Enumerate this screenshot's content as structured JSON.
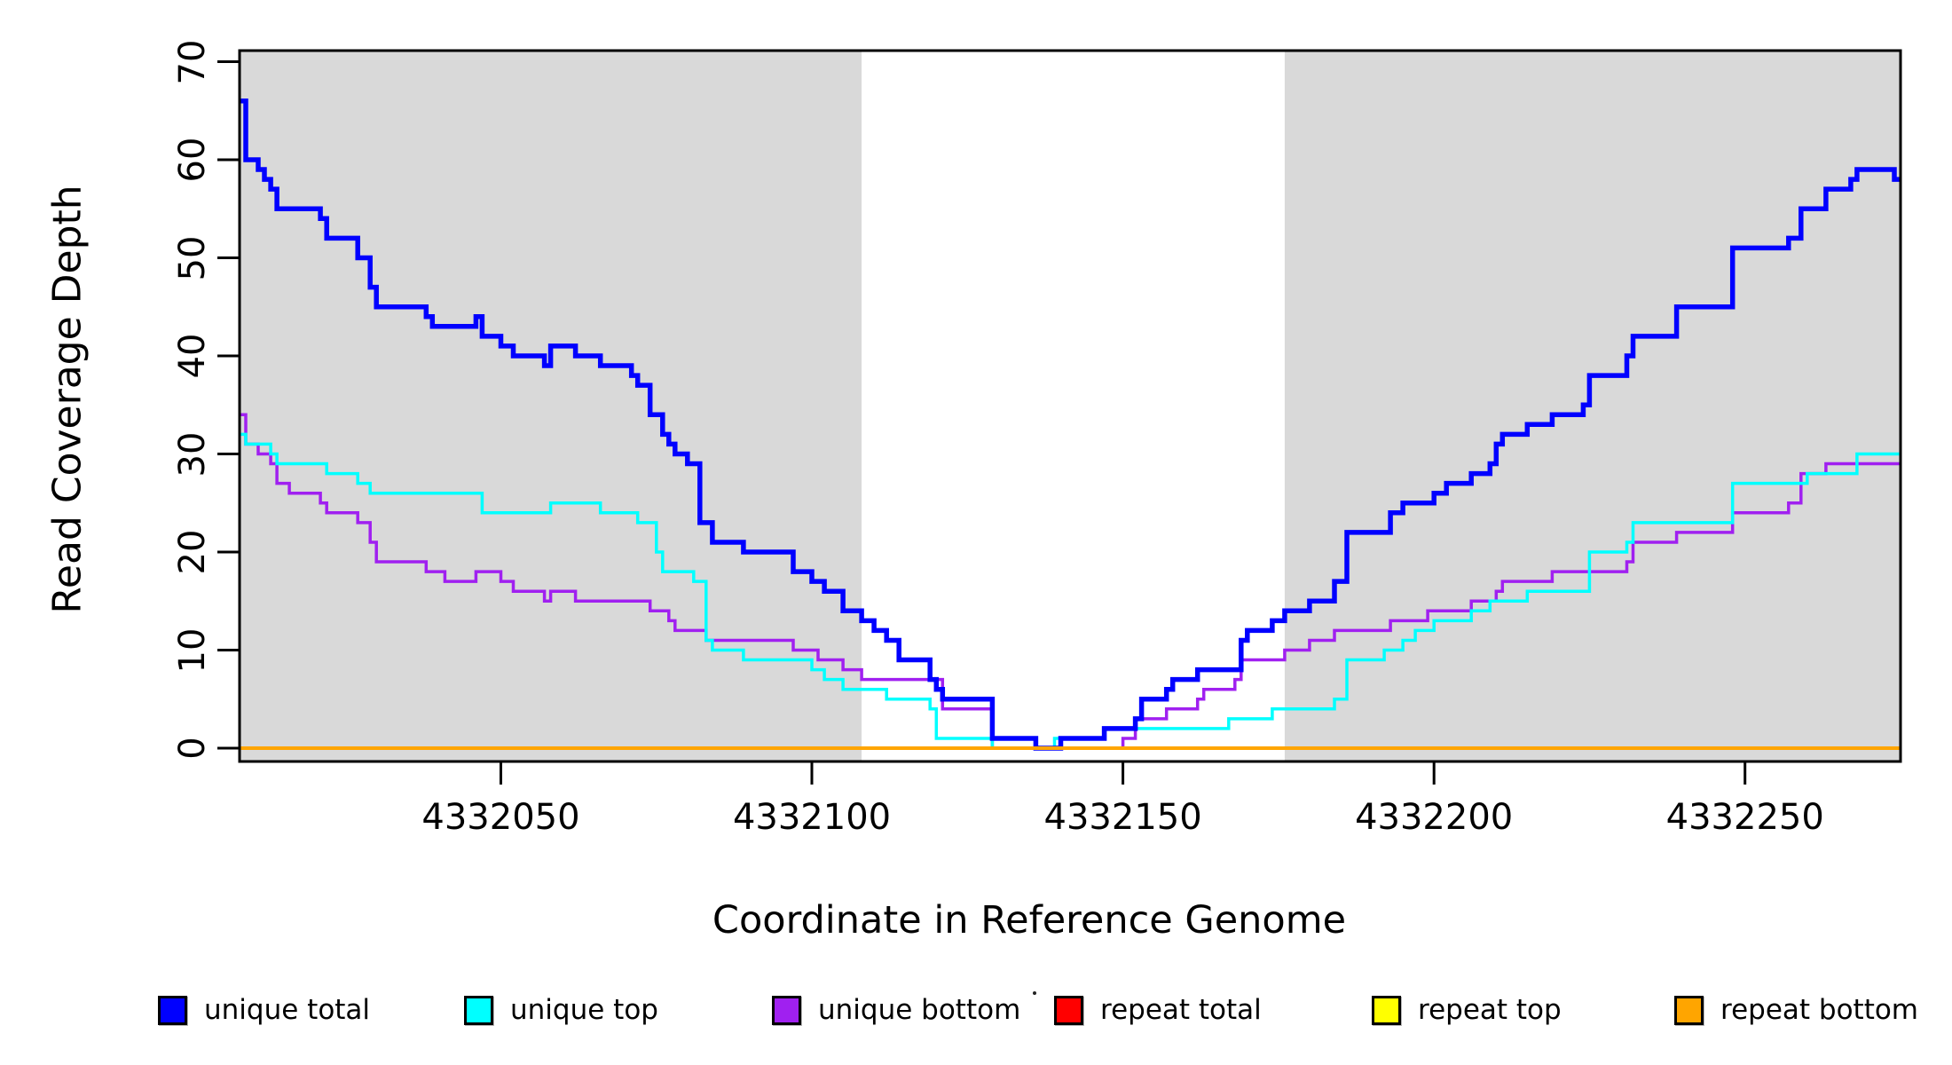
{
  "figure": {
    "y_axis_title": "Read Coverage Depth",
    "x_axis_title": "Coordinate in Reference Genome",
    "y_tick_labels": [
      "0",
      "10",
      "20",
      "30",
      "40",
      "50",
      "60",
      "70"
    ],
    "x_tick_labels": [
      "4332050",
      "4332100",
      "4332150",
      "4332200",
      "4332250"
    ]
  },
  "legend": {
    "position": "bottom",
    "items": [
      {
        "label": "unique total",
        "color": "#0000FF"
      },
      {
        "label": "unique top",
        "color": "#00FFFF"
      },
      {
        "label": "unique bottom",
        "color": "#A020F0"
      },
      {
        "label": "repeat total",
        "color": "#FF0000"
      },
      {
        "label": "repeat top",
        "color": "#FFFF00"
      },
      {
        "label": "repeat bottom",
        "color": "#FFA500"
      }
    ]
  },
  "chart_data": {
    "type": "line",
    "subtype": "step",
    "title": "",
    "xlabel": "Coordinate in Reference Genome",
    "ylabel": "Read Coverage Depth",
    "xlim": [
      4332008,
      4332275
    ],
    "ylim": [
      0,
      70
    ],
    "x_tick_values": [
      4332050,
      4332100,
      4332150,
      4332200,
      4332250
    ],
    "y_tick_values": [
      0,
      10,
      20,
      30,
      40,
      50,
      60,
      70
    ],
    "grid": false,
    "legend_position": "bottom",
    "background_color": "#FFFFFF",
    "shaded_band_color": "#D9D9D9",
    "shaded_regions": [
      {
        "x0": 4332008,
        "x1": 4332108
      },
      {
        "x0": 4332176,
        "x1": 4332275
      }
    ],
    "series": [
      {
        "name": "unique total",
        "color": "#0000FF",
        "width": 5.5,
        "points": [
          [
            4332008,
            66
          ],
          [
            4332009,
            60
          ],
          [
            4332011,
            59
          ],
          [
            4332012,
            58
          ],
          [
            4332013,
            57
          ],
          [
            4332014,
            55
          ],
          [
            4332021,
            54
          ],
          [
            4332022,
            52
          ],
          [
            4332027,
            50
          ],
          [
            4332029,
            47
          ],
          [
            4332030,
            45
          ],
          [
            4332038,
            44
          ],
          [
            4332039,
            43
          ],
          [
            4332046,
            44
          ],
          [
            4332047,
            42
          ],
          [
            4332050,
            41
          ],
          [
            4332052,
            40
          ],
          [
            4332057,
            39
          ],
          [
            4332058,
            41
          ],
          [
            4332062,
            40
          ],
          [
            4332066,
            39
          ],
          [
            4332071,
            38
          ],
          [
            4332072,
            37
          ],
          [
            4332074,
            34
          ],
          [
            4332076,
            32
          ],
          [
            4332077,
            31
          ],
          [
            4332078,
            30
          ],
          [
            4332080,
            29
          ],
          [
            4332082,
            23
          ],
          [
            4332084,
            21
          ],
          [
            4332089,
            20
          ],
          [
            4332097,
            18
          ],
          [
            4332100,
            17
          ],
          [
            4332102,
            16
          ],
          [
            4332105,
            14
          ],
          [
            4332108,
            13
          ],
          [
            4332110,
            12
          ],
          [
            4332112,
            11
          ],
          [
            4332114,
            9
          ],
          [
            4332119,
            7
          ],
          [
            4332120,
            6
          ],
          [
            4332121,
            5
          ],
          [
            4332129,
            1
          ],
          [
            4332136,
            0
          ],
          [
            4332140,
            1
          ],
          [
            4332147,
            2
          ],
          [
            4332152,
            3
          ],
          [
            4332153,
            5
          ],
          [
            4332157,
            6
          ],
          [
            4332158,
            7
          ],
          [
            4332162,
            8
          ],
          [
            4332169,
            11
          ],
          [
            4332170,
            12
          ],
          [
            4332174,
            13
          ],
          [
            4332176,
            14
          ],
          [
            4332180,
            15
          ],
          [
            4332184,
            17
          ],
          [
            4332186,
            22
          ],
          [
            4332193,
            24
          ],
          [
            4332195,
            25
          ],
          [
            4332200,
            26
          ],
          [
            4332202,
            27
          ],
          [
            4332206,
            28
          ],
          [
            4332209,
            29
          ],
          [
            4332210,
            31
          ],
          [
            4332211,
            32
          ],
          [
            4332215,
            33
          ],
          [
            4332219,
            34
          ],
          [
            4332224,
            35
          ],
          [
            4332225,
            38
          ],
          [
            4332231,
            40
          ],
          [
            4332232,
            42
          ],
          [
            4332239,
            45
          ],
          [
            4332248,
            51
          ],
          [
            4332257,
            52
          ],
          [
            4332259,
            55
          ],
          [
            4332263,
            57
          ],
          [
            4332267,
            58
          ],
          [
            4332268,
            59
          ],
          [
            4332274,
            58
          ]
        ]
      },
      {
        "name": "unique top",
        "color": "#00FFFF",
        "width": 3.5,
        "points": [
          [
            4332008,
            32
          ],
          [
            4332009,
            31
          ],
          [
            4332013,
            30
          ],
          [
            4332014,
            29
          ],
          [
            4332022,
            28
          ],
          [
            4332027,
            27
          ],
          [
            4332029,
            26
          ],
          [
            4332047,
            24
          ],
          [
            4332058,
            25
          ],
          [
            4332066,
            24
          ],
          [
            4332072,
            23
          ],
          [
            4332075,
            20
          ],
          [
            4332076,
            18
          ],
          [
            4332081,
            17
          ],
          [
            4332083,
            11
          ],
          [
            4332084,
            10
          ],
          [
            4332089,
            9
          ],
          [
            4332100,
            8
          ],
          [
            4332102,
            7
          ],
          [
            4332105,
            6
          ],
          [
            4332112,
            5
          ],
          [
            4332119,
            4
          ],
          [
            4332120,
            1
          ],
          [
            4332129,
            0
          ],
          [
            4332139,
            1
          ],
          [
            4332147,
            2
          ],
          [
            4332167,
            3
          ],
          [
            4332174,
            4
          ],
          [
            4332184,
            5
          ],
          [
            4332186,
            9
          ],
          [
            4332192,
            10
          ],
          [
            4332195,
            11
          ],
          [
            4332197,
            12
          ],
          [
            4332200,
            13
          ],
          [
            4332206,
            14
          ],
          [
            4332209,
            15
          ],
          [
            4332215,
            16
          ],
          [
            4332225,
            20
          ],
          [
            4332231,
            21
          ],
          [
            4332232,
            23
          ],
          [
            4332248,
            27
          ],
          [
            4332260,
            28
          ],
          [
            4332268,
            30
          ]
        ]
      },
      {
        "name": "unique bottom",
        "color": "#A020F0",
        "width": 3.5,
        "points": [
          [
            4332008,
            34
          ],
          [
            4332009,
            31
          ],
          [
            4332011,
            30
          ],
          [
            4332013,
            29
          ],
          [
            4332014,
            27
          ],
          [
            4332016,
            26
          ],
          [
            4332021,
            25
          ],
          [
            4332022,
            24
          ],
          [
            4332027,
            23
          ],
          [
            4332029,
            21
          ],
          [
            4332030,
            19
          ],
          [
            4332038,
            18
          ],
          [
            4332041,
            17
          ],
          [
            4332046,
            18
          ],
          [
            4332050,
            17
          ],
          [
            4332052,
            16
          ],
          [
            4332057,
            15
          ],
          [
            4332058,
            16
          ],
          [
            4332062,
            15
          ],
          [
            4332074,
            14
          ],
          [
            4332077,
            13
          ],
          [
            4332078,
            12
          ],
          [
            4332083,
            11
          ],
          [
            4332097,
            10
          ],
          [
            4332101,
            9
          ],
          [
            4332105,
            8
          ],
          [
            4332108,
            7
          ],
          [
            4332121,
            4
          ],
          [
            4332129,
            0
          ],
          [
            4332150,
            1
          ],
          [
            4332152,
            3
          ],
          [
            4332157,
            4
          ],
          [
            4332162,
            5
          ],
          [
            4332163,
            6
          ],
          [
            4332168,
            7
          ],
          [
            4332169,
            9
          ],
          [
            4332176,
            10
          ],
          [
            4332180,
            11
          ],
          [
            4332184,
            12
          ],
          [
            4332193,
            13
          ],
          [
            4332199,
            14
          ],
          [
            4332206,
            15
          ],
          [
            4332210,
            16
          ],
          [
            4332211,
            17
          ],
          [
            4332219,
            18
          ],
          [
            4332231,
            19
          ],
          [
            4332232,
            21
          ],
          [
            4332239,
            22
          ],
          [
            4332248,
            24
          ],
          [
            4332257,
            25
          ],
          [
            4332259,
            28
          ],
          [
            4332263,
            29
          ]
        ]
      },
      {
        "name": "repeat total",
        "color": "#FF0000",
        "width": 3.5,
        "points": [
          [
            4332008,
            0
          ]
        ]
      },
      {
        "name": "repeat top",
        "color": "#FFFF00",
        "width": 3.5,
        "points": [
          [
            4332008,
            0
          ]
        ]
      },
      {
        "name": "repeat bottom",
        "color": "#FFA500",
        "width": 4,
        "points": [
          [
            4332008,
            0
          ]
        ]
      }
    ]
  }
}
